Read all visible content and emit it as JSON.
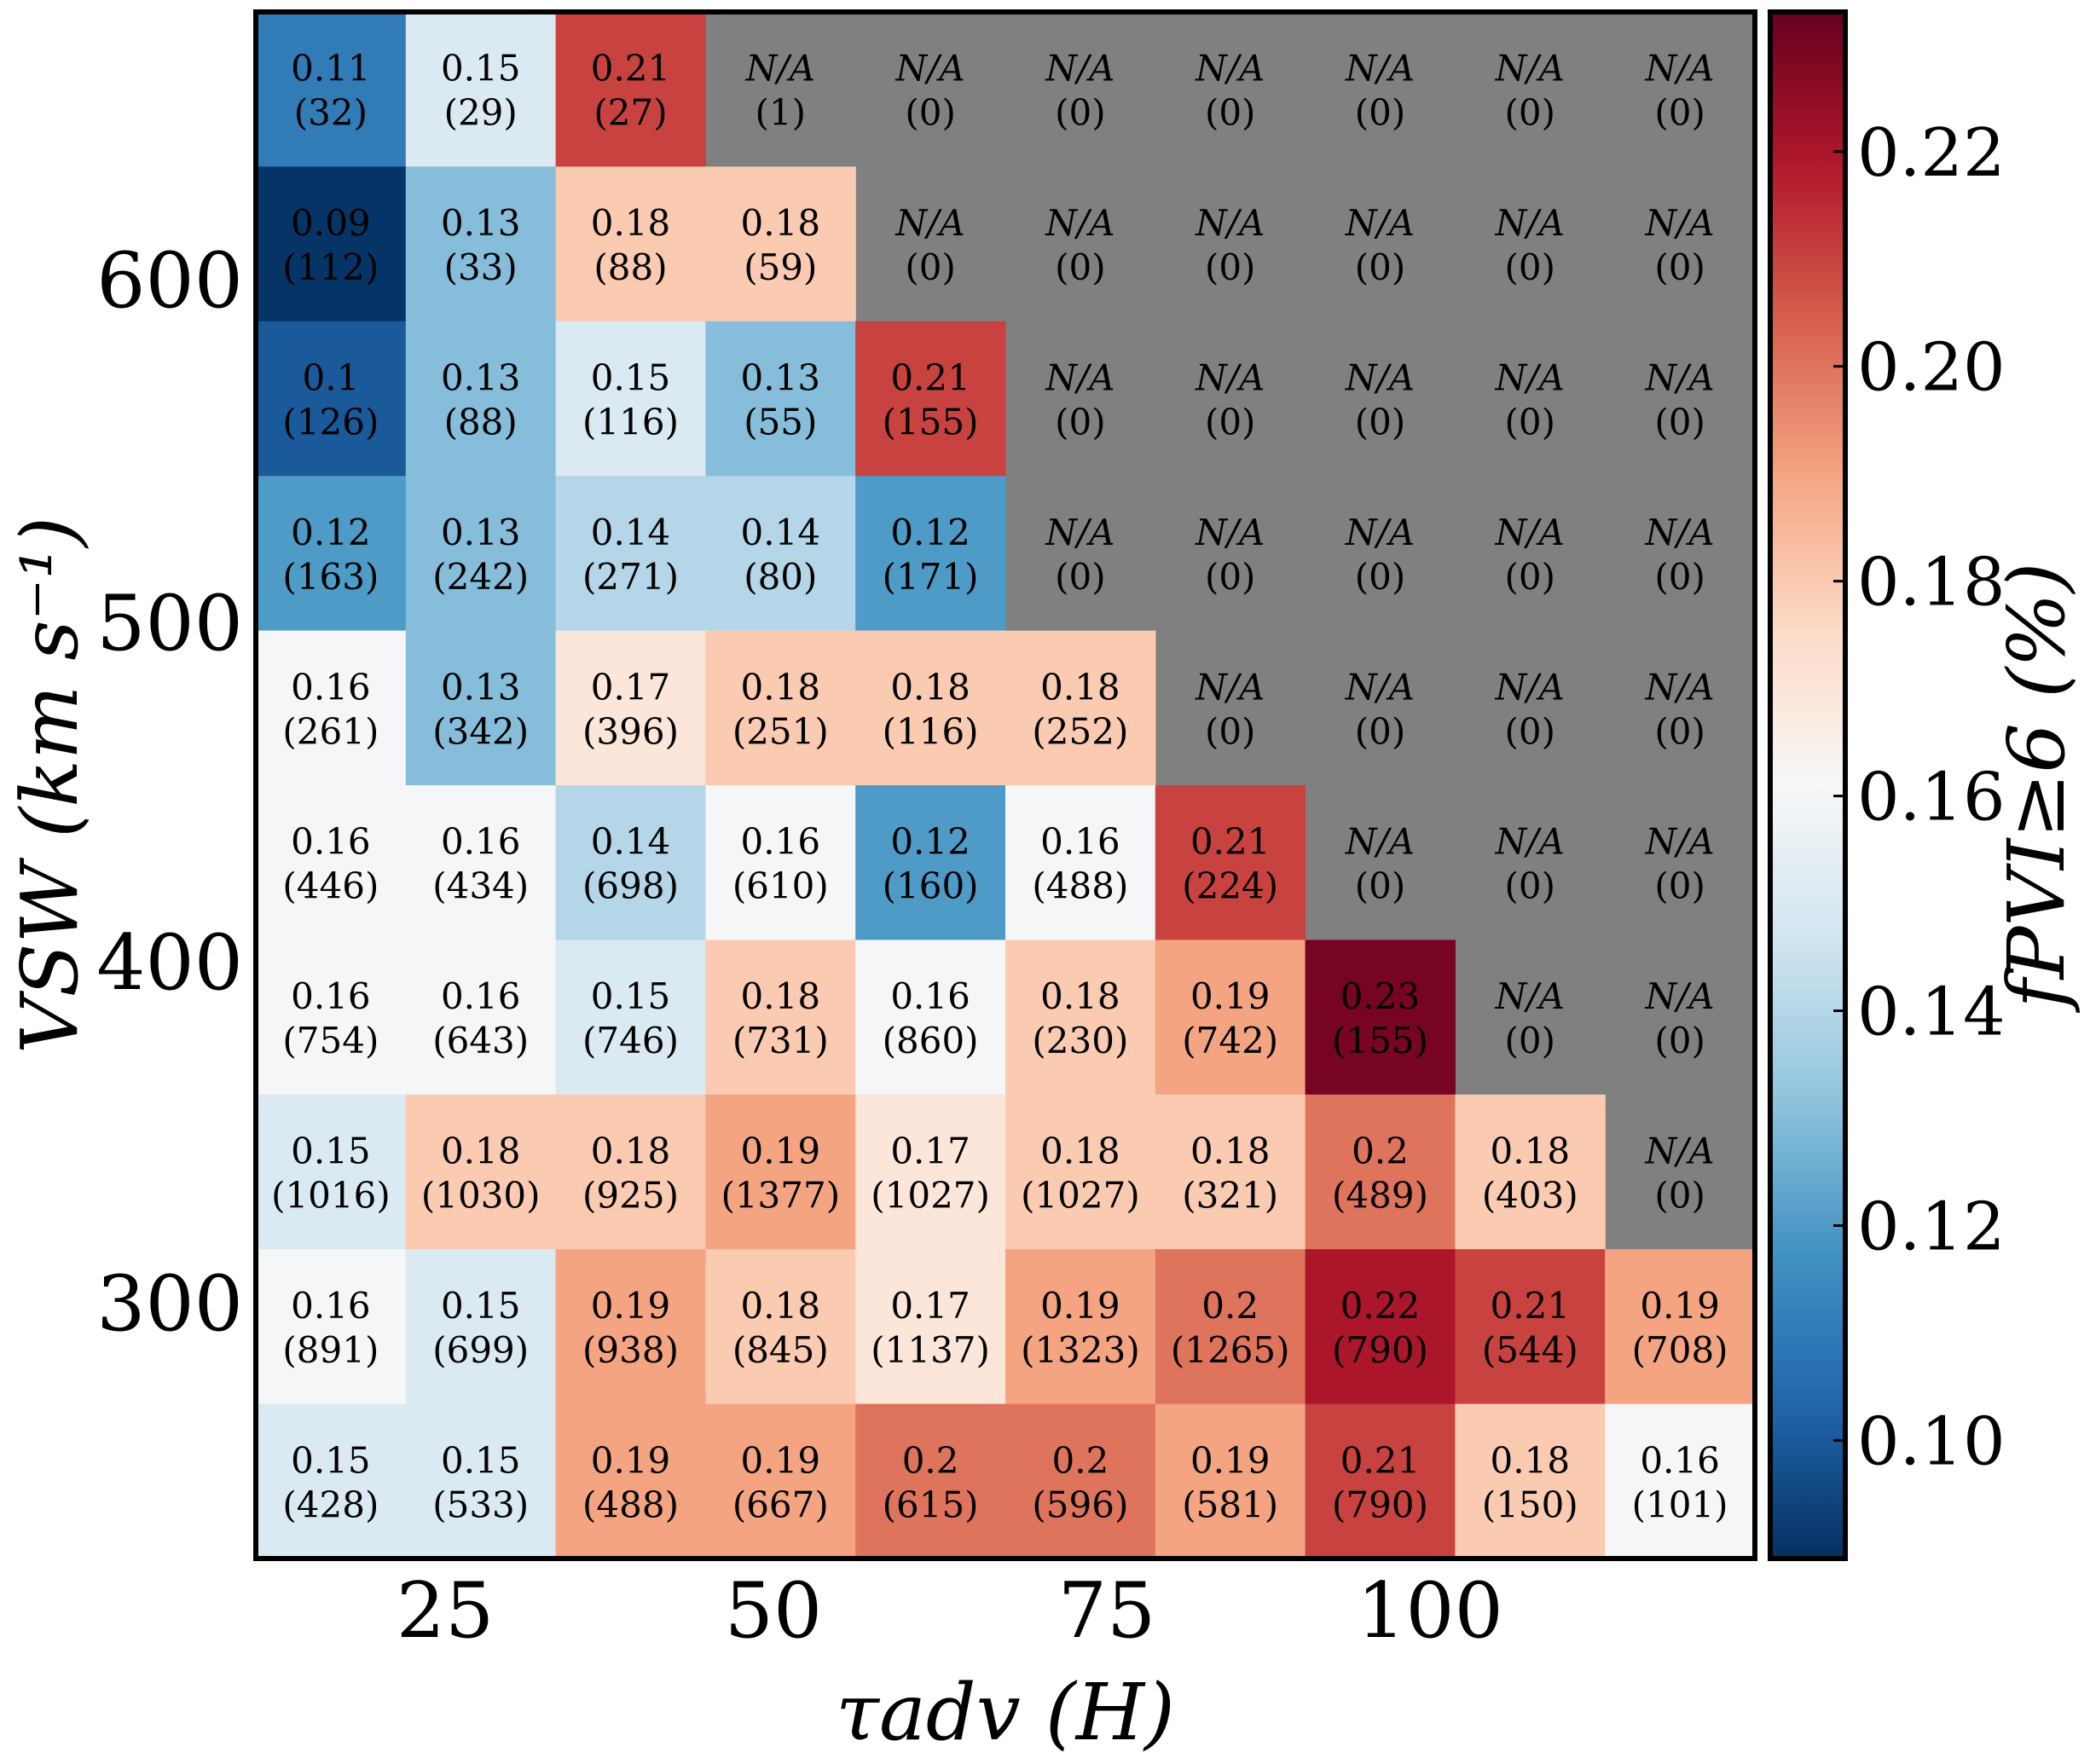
{
  "chart_data": {
    "type": "heatmap",
    "title": "",
    "xlabel": "τadv (H)",
    "ylabel": "VSW (km s⁻¹)",
    "x_tick_labels": [
      "25",
      "50",
      "75",
      "100"
    ],
    "y_tick_labels": [
      "600",
      "500",
      "400",
      "300"
    ],
    "colorbar": {
      "label": "fPVI≥6 (%)",
      "ticks": [
        "0.10",
        "0.12",
        "0.14",
        "0.16",
        "0.18",
        "0.20",
        "0.22"
      ],
      "range": [
        0.089,
        0.233
      ],
      "colormap": "RdBu_r",
      "na_color": "#808080"
    },
    "na_label": "N/A",
    "columns": 10,
    "rows_top_to_bottom": [
      {
        "values": [
          0.11,
          0.15,
          0.21,
          null,
          null,
          null,
          null,
          null,
          null,
          null
        ],
        "labels": [
          "0.11",
          "0.15",
          "0.21",
          "N/A",
          "N/A",
          "N/A",
          "N/A",
          "N/A",
          "N/A",
          "N/A"
        ],
        "counts": [
          32,
          29,
          27,
          1,
          0,
          0,
          0,
          0,
          0,
          0
        ]
      },
      {
        "values": [
          0.09,
          0.13,
          0.18,
          0.18,
          null,
          null,
          null,
          null,
          null,
          null
        ],
        "labels": [
          "0.09",
          "0.13",
          "0.18",
          "0.18",
          "N/A",
          "N/A",
          "N/A",
          "N/A",
          "N/A",
          "N/A"
        ],
        "counts": [
          112,
          33,
          88,
          59,
          0,
          0,
          0,
          0,
          0,
          0
        ]
      },
      {
        "values": [
          0.1,
          0.13,
          0.15,
          0.13,
          0.21,
          null,
          null,
          null,
          null,
          null
        ],
        "labels": [
          "0.1",
          "0.13",
          "0.15",
          "0.13",
          "0.21",
          "N/A",
          "N/A",
          "N/A",
          "N/A",
          "N/A"
        ],
        "counts": [
          126,
          88,
          116,
          55,
          155,
          0,
          0,
          0,
          0,
          0
        ]
      },
      {
        "values": [
          0.12,
          0.13,
          0.14,
          0.14,
          0.12,
          null,
          null,
          null,
          null,
          null
        ],
        "labels": [
          "0.12",
          "0.13",
          "0.14",
          "0.14",
          "0.12",
          "N/A",
          "N/A",
          "N/A",
          "N/A",
          "N/A"
        ],
        "counts": [
          163,
          242,
          271,
          80,
          171,
          0,
          0,
          0,
          0,
          0
        ]
      },
      {
        "values": [
          0.16,
          0.13,
          0.17,
          0.18,
          0.18,
          0.18,
          null,
          null,
          null,
          null
        ],
        "labels": [
          "0.16",
          "0.13",
          "0.17",
          "0.18",
          "0.18",
          "0.18",
          "N/A",
          "N/A",
          "N/A",
          "N/A"
        ],
        "counts": [
          261,
          342,
          396,
          251,
          116,
          252,
          0,
          0,
          0,
          0
        ]
      },
      {
        "values": [
          0.16,
          0.16,
          0.14,
          0.16,
          0.12,
          0.16,
          0.21,
          null,
          null,
          null
        ],
        "labels": [
          "0.16",
          "0.16",
          "0.14",
          "0.16",
          "0.12",
          "0.16",
          "0.21",
          "N/A",
          "N/A",
          "N/A"
        ],
        "counts": [
          446,
          434,
          698,
          610,
          160,
          488,
          224,
          0,
          0,
          0
        ]
      },
      {
        "values": [
          0.16,
          0.16,
          0.15,
          0.18,
          0.16,
          0.18,
          0.19,
          0.23,
          null,
          null
        ],
        "labels": [
          "0.16",
          "0.16",
          "0.15",
          "0.18",
          "0.16",
          "0.18",
          "0.19",
          "0.23",
          "N/A",
          "N/A"
        ],
        "counts": [
          754,
          643,
          746,
          731,
          860,
          230,
          742,
          155,
          0,
          0
        ]
      },
      {
        "values": [
          0.15,
          0.18,
          0.18,
          0.19,
          0.17,
          0.18,
          0.18,
          0.2,
          0.18,
          null
        ],
        "labels": [
          "0.15",
          "0.18",
          "0.18",
          "0.19",
          "0.17",
          "0.18",
          "0.18",
          "0.2",
          "0.18",
          "N/A"
        ],
        "counts": [
          1016,
          1030,
          925,
          1377,
          1027,
          1027,
          321,
          489,
          403,
          0
        ]
      },
      {
        "values": [
          0.16,
          0.15,
          0.19,
          0.18,
          0.17,
          0.19,
          0.2,
          0.22,
          0.21,
          0.19
        ],
        "labels": [
          "0.16",
          "0.15",
          "0.19",
          "0.18",
          "0.17",
          "0.19",
          "0.2",
          "0.22",
          "0.21",
          "0.19"
        ],
        "counts": [
          891,
          699,
          938,
          845,
          1137,
          1323,
          1265,
          790,
          544,
          708
        ]
      },
      {
        "values": [
          0.15,
          0.15,
          0.19,
          0.19,
          0.2,
          0.2,
          0.19,
          0.21,
          0.18,
          0.16
        ],
        "labels": [
          "0.15",
          "0.15",
          "0.19",
          "0.19",
          "0.2",
          "0.2",
          "0.19",
          "0.21",
          "0.18",
          "0.16"
        ],
        "counts": [
          428,
          533,
          488,
          667,
          615,
          596,
          581,
          790,
          150,
          101
        ]
      }
    ]
  }
}
